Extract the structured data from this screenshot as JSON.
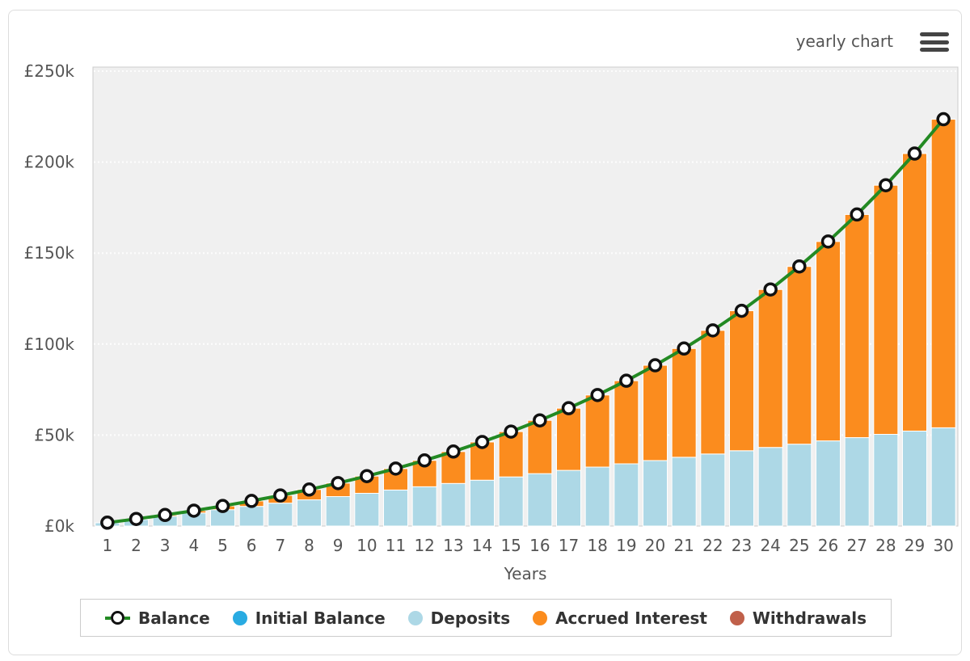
{
  "header": {
    "view_label": "yearly chart",
    "menu_icon": "hamburger-menu-icon"
  },
  "axis": {
    "x_title": "Years"
  },
  "colors": {
    "plot_bg": "#f0f0f0",
    "plot_border": "#cccccc",
    "gridline": "#ffffff",
    "axis_text": "#555555",
    "balance_line": "#238a23",
    "marker_stroke": "#111111",
    "marker_fill": "#ffffff",
    "initial_balance": "#29abe2",
    "deposits": "#add8e6",
    "accrued_interest": "#fb8c1e",
    "withdrawals": "#c0604a"
  },
  "chart_data": {
    "type": "bar",
    "subtype": "stacked-bars-with-line-overlay",
    "title": "",
    "xlabel": "Years",
    "ylabel": "",
    "x": [
      1,
      2,
      3,
      4,
      5,
      6,
      7,
      8,
      9,
      10,
      11,
      12,
      13,
      14,
      15,
      16,
      17,
      18,
      19,
      20,
      21,
      22,
      23,
      24,
      25,
      26,
      27,
      28,
      29,
      30
    ],
    "ylim": [
      0,
      252000
    ],
    "yticks": [
      0,
      50000,
      100000,
      150000,
      200000,
      250000
    ],
    "ytick_labels": [
      "£0k",
      "£50k",
      "£100k",
      "£150k",
      "£200k",
      "£250k"
    ],
    "grid": "horizontal-dotted",
    "legend_position": "bottom",
    "series": [
      {
        "name": "Balance",
        "type": "line",
        "color": "#238a23",
        "marker": "circle-white-black-ring",
        "values": [
          1868,
          3890,
          6080,
          8453,
          11022,
          13804,
          16817,
          20080,
          23615,
          27442,
          31587,
          36077,
          40938,
          46204,
          51906,
          58082,
          64770,
          72014,
          79858,
          88354,
          97555,
          107519,
          118311,
          129998,
          142656,
          156364,
          171209,
          187287,
          204700,
          223557
        ]
      },
      {
        "name": "Initial Balance",
        "type": "bar",
        "color": "#29abe2",
        "values": [
          0,
          0,
          0,
          0,
          0,
          0,
          0,
          0,
          0,
          0,
          0,
          0,
          0,
          0,
          0,
          0,
          0,
          0,
          0,
          0,
          0,
          0,
          0,
          0,
          0,
          0,
          0,
          0,
          0,
          0
        ]
      },
      {
        "name": "Deposits",
        "type": "bar",
        "color": "#add8e6",
        "values": [
          1800,
          3600,
          5400,
          7200,
          9000,
          10800,
          12600,
          14400,
          16200,
          18000,
          19800,
          21600,
          23400,
          25200,
          27000,
          28800,
          30600,
          32400,
          34200,
          36000,
          37800,
          39600,
          41400,
          43200,
          45000,
          46800,
          48600,
          50400,
          52200,
          54000
        ]
      },
      {
        "name": "Accrued Interest",
        "type": "bar",
        "color": "#fb8c1e",
        "values": [
          68,
          290,
          680,
          1253,
          2022,
          3004,
          4217,
          5680,
          7415,
          9442,
          11787,
          14477,
          17538,
          21004,
          24906,
          29282,
          34170,
          39614,
          45658,
          52354,
          59755,
          67919,
          76911,
          86798,
          97656,
          109564,
          122609,
          136887,
          152500,
          169557
        ]
      },
      {
        "name": "Withdrawals",
        "type": "bar",
        "color": "#c0604a",
        "values": [
          0,
          0,
          0,
          0,
          0,
          0,
          0,
          0,
          0,
          0,
          0,
          0,
          0,
          0,
          0,
          0,
          0,
          0,
          0,
          0,
          0,
          0,
          0,
          0,
          0,
          0,
          0,
          0,
          0,
          0
        ]
      }
    ]
  },
  "legend": {
    "items": [
      {
        "label": "Balance",
        "marker": "line-with-ring",
        "color": "#238a23"
      },
      {
        "label": "Initial Balance",
        "marker": "dot",
        "color": "#29abe2"
      },
      {
        "label": "Deposits",
        "marker": "dot",
        "color": "#add8e6"
      },
      {
        "label": "Accrued Interest",
        "marker": "dot",
        "color": "#fb8c1e"
      },
      {
        "label": "Withdrawals",
        "marker": "dot",
        "color": "#c0604a"
      }
    ]
  }
}
